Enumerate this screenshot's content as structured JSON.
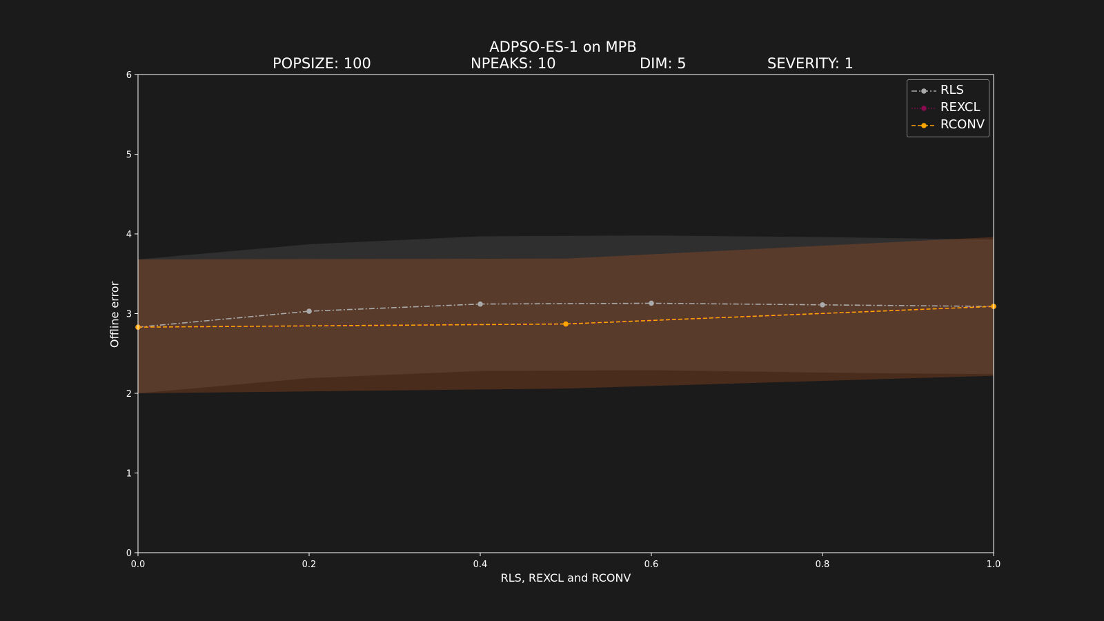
{
  "chart_data": {
    "type": "line",
    "title": "ADPSO-ES-1 on MPB",
    "subtitle_items": [
      "POPSIZE: 100",
      "NPEAKS: 10",
      "DIM: 5",
      "SEVERITY: 1"
    ],
    "xlabel": "RLS, REXCL and RCONV",
    "ylabel": "Offline error",
    "xlim": [
      0,
      1
    ],
    "ylim": [
      0,
      6
    ],
    "xticks": [
      "0.0",
      "0.2",
      "0.4",
      "0.6",
      "0.8",
      "1.0"
    ],
    "yticks": [
      "0",
      "1",
      "2",
      "3",
      "4",
      "5",
      "6"
    ],
    "grid": false,
    "legend_position": "top-right",
    "series": [
      {
        "name": "RLS",
        "color": "#aaaaaa",
        "line_style": "dashdot",
        "x": [
          0.0,
          0.2,
          0.4,
          0.6,
          0.8,
          1.0
        ],
        "y": [
          2.83,
          3.03,
          3.12,
          3.13,
          3.11,
          3.09
        ],
        "upper": [
          3.68,
          3.87,
          3.97,
          3.98,
          3.96,
          3.93
        ],
        "lower": [
          2.0,
          2.19,
          2.28,
          2.29,
          2.26,
          2.24
        ]
      },
      {
        "name": "REXCL",
        "color": "#8b0a50",
        "line_style": "dotted",
        "x": [
          0.0,
          0.5,
          1.0
        ],
        "y": [
          2.83,
          2.87,
          3.09
        ],
        "upper": [
          3.68,
          3.69,
          3.96
        ],
        "lower": [
          2.0,
          2.06,
          2.22
        ]
      },
      {
        "name": "RCONV",
        "color": "#ffa500",
        "line_style": "dashed",
        "x": [
          0.0,
          0.5,
          1.0
        ],
        "y": [
          2.83,
          2.87,
          3.09
        ],
        "upper": [
          3.68,
          3.69,
          3.96
        ],
        "lower": [
          2.0,
          2.06,
          2.22
        ]
      }
    ]
  }
}
